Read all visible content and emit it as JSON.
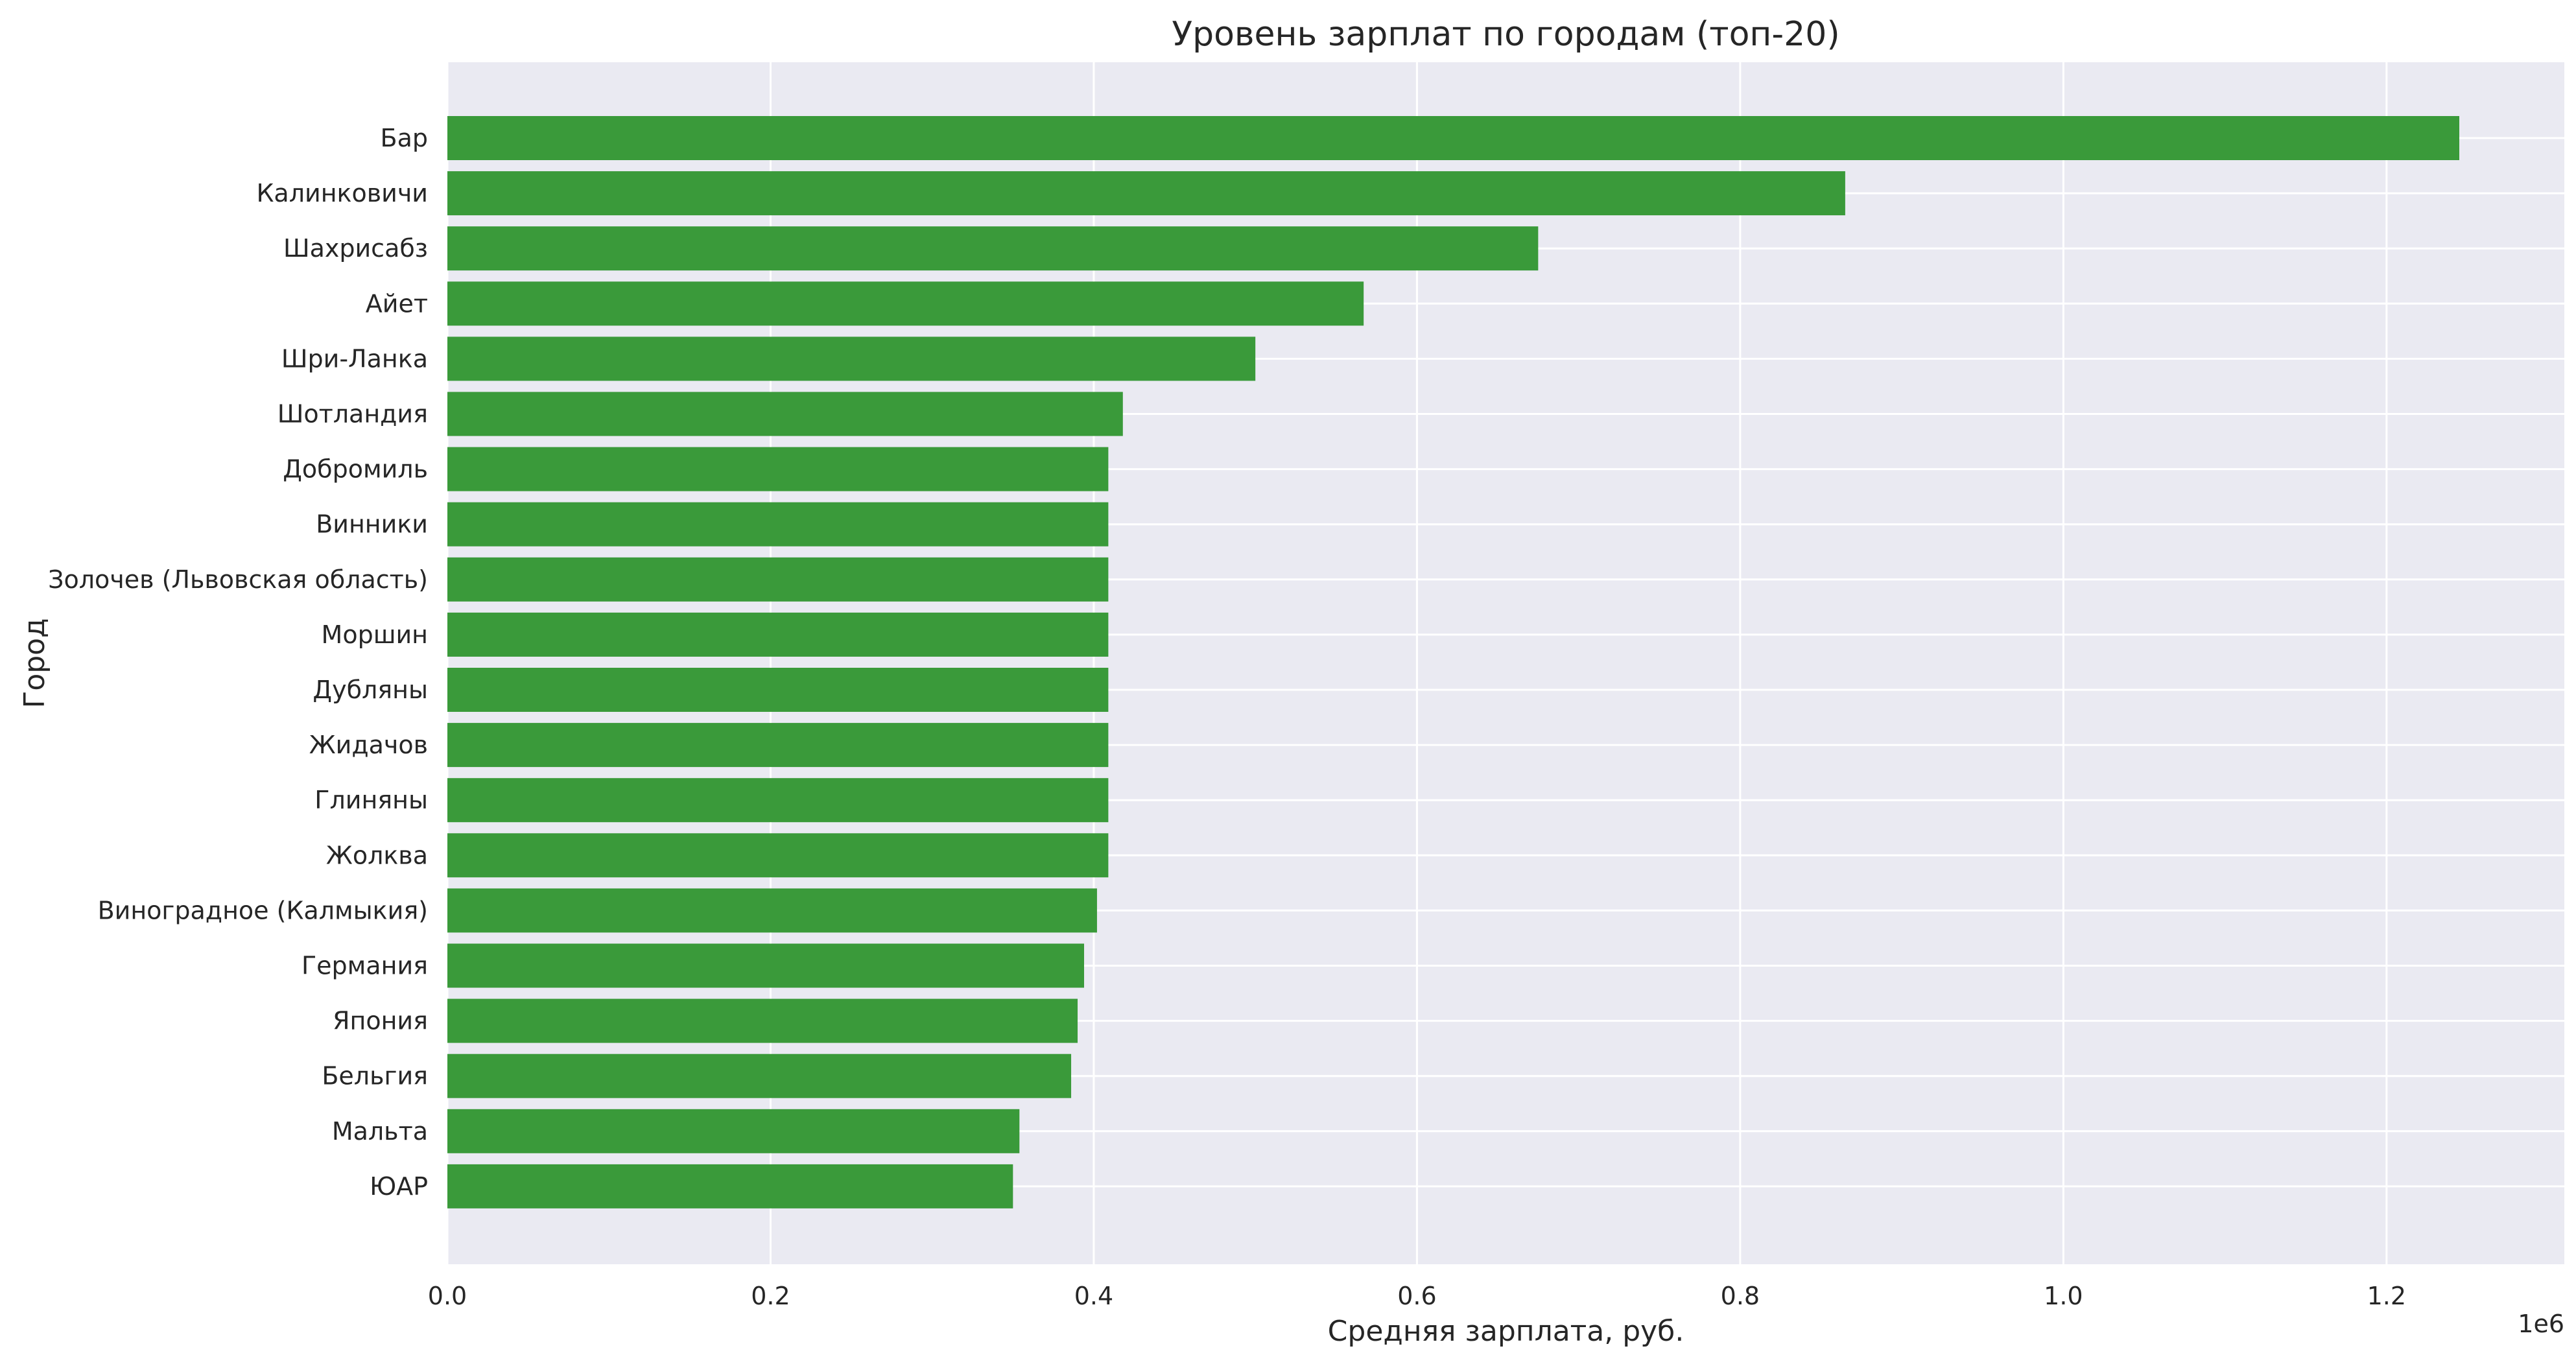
{
  "chart_data": {
    "type": "bar",
    "orientation": "horizontal",
    "title": "Уровень зарплат по городам (топ-20)",
    "xlabel": "Средняя зарплата, руб.",
    "ylabel": "Город",
    "x_offset_label": "1e6",
    "xlim": [
      0,
      1.31
    ],
    "x_ticks": [
      0.0,
      0.2,
      0.4,
      0.6,
      0.8,
      1.0,
      1.2
    ],
    "x_tick_labels": [
      "0.0",
      "0.2",
      "0.4",
      "0.6",
      "0.8",
      "1.0",
      "1.2"
    ],
    "grid": true,
    "bar_color": "#3a9a3a",
    "background_color": "#eaeaf2",
    "categories": [
      "Бар",
      "Калинковичи",
      "Шахрисабз",
      "Айет",
      "Шри-Ланка",
      "Шотландия",
      "Добромиль",
      "Винники",
      "Золочев (Львовская область)",
      "Моршин",
      "Дубляны",
      "Жидачов",
      "Глиняны",
      "Жолква",
      "Виноградное (Калмыкия)",
      "Германия",
      "Япония",
      "Бельгия",
      "Мальта",
      "ЮАР"
    ],
    "values": [
      1.245,
      0.865,
      0.675,
      0.567,
      0.5,
      0.418,
      0.409,
      0.409,
      0.409,
      0.409,
      0.409,
      0.409,
      0.409,
      0.409,
      0.402,
      0.394,
      0.39,
      0.386,
      0.354,
      0.35
    ]
  }
}
